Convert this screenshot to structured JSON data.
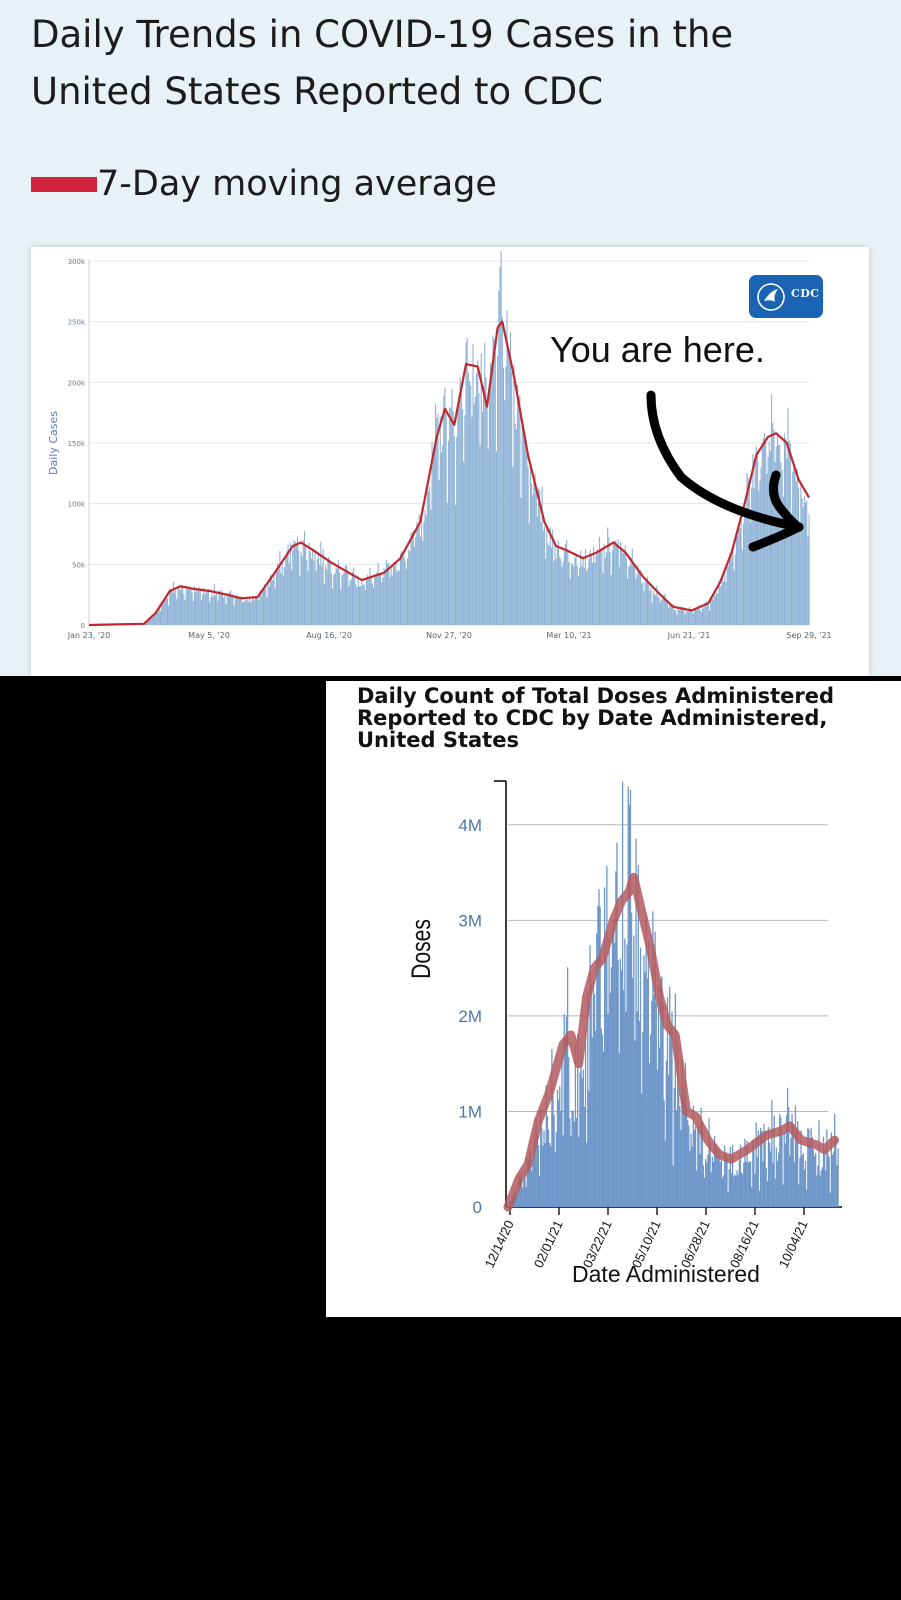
{
  "cases_panel": {
    "title_lines": [
      "Daily Trends in COVID-19 Cases in the",
      "United States Reported to CDC"
    ],
    "legend_label": "7-Day moving average",
    "annotation": "You are here.",
    "logo_text": "CDC",
    "colors": {
      "bars": "#8fb3d6",
      "average": "#c0282d",
      "legend": "#d1223b",
      "logo": "#1a64b3"
    }
  },
  "doses_panel": {
    "title_lines": [
      "Daily Count of Total Doses Administered",
      "Reported to CDC by Date Administered,",
      "United States"
    ],
    "colors": {
      "bars": "#6f97c9",
      "average": "#b45a5e",
      "axis_text": "#4a78ad"
    }
  },
  "chart_data": [
    {
      "type": "bar",
      "title": "Daily Trends in COVID-19 Cases in the United States Reported to CDC",
      "xlabel": "",
      "ylabel": "Daily Cases",
      "ylim": [
        0,
        300000
      ],
      "yticks": [
        "0",
        "50k",
        "100k",
        "150k",
        "200k",
        "250k",
        "300k"
      ],
      "xticks": [
        "Jan 23, '20",
        "May 5, '20",
        "Aug 16, '20",
        "Nov 27, '20",
        "Mar 10, '21",
        "Jun 21, '21",
        "Sep 29, '21"
      ],
      "grid": true,
      "legend_position": "top-left",
      "series": [
        {
          "name": "7-Day moving average",
          "points": [
            [
              "2020-01-23",
              0
            ],
            [
              "2020-03-10",
              1000
            ],
            [
              "2020-03-20",
              10000
            ],
            [
              "2020-04-01",
              28000
            ],
            [
              "2020-04-10",
              32000
            ],
            [
              "2020-04-20",
              30000
            ],
            [
              "2020-05-05",
              28000
            ],
            [
              "2020-05-20",
              25000
            ],
            [
              "2020-06-01",
              22000
            ],
            [
              "2020-06-15",
              23000
            ],
            [
              "2020-07-01",
              45000
            ],
            [
              "2020-07-15",
              65000
            ],
            [
              "2020-07-22",
              68000
            ],
            [
              "2020-08-01",
              62000
            ],
            [
              "2020-08-16",
              52000
            ],
            [
              "2020-09-01",
              43000
            ],
            [
              "2020-09-12",
              37000
            ],
            [
              "2020-10-01",
              43000
            ],
            [
              "2020-10-15",
              55000
            ],
            [
              "2020-11-01",
              85000
            ],
            [
              "2020-11-15",
              155000
            ],
            [
              "2020-11-22",
              178000
            ],
            [
              "2020-11-30",
              165000
            ],
            [
              "2020-12-10",
              215000
            ],
            [
              "2020-12-20",
              213000
            ],
            [
              "2020-12-28",
              180000
            ],
            [
              "2021-01-06",
              245000
            ],
            [
              "2021-01-10",
              250000
            ],
            [
              "2021-01-20",
              205000
            ],
            [
              "2021-02-01",
              140000
            ],
            [
              "2021-02-15",
              85000
            ],
            [
              "2021-02-25",
              65000
            ],
            [
              "2021-03-05",
              62000
            ],
            [
              "2021-03-20",
              55000
            ],
            [
              "2021-04-01",
              60000
            ],
            [
              "2021-04-15",
              68000
            ],
            [
              "2021-04-25",
              60000
            ],
            [
              "2021-05-10",
              40000
            ],
            [
              "2021-05-25",
              25000
            ],
            [
              "2021-06-05",
              15000
            ],
            [
              "2021-06-21",
              12000
            ],
            [
              "2021-07-05",
              18000
            ],
            [
              "2021-07-15",
              35000
            ],
            [
              "2021-07-25",
              60000
            ],
            [
              "2021-08-05",
              100000
            ],
            [
              "2021-08-15",
              140000
            ],
            [
              "2021-08-25",
              155000
            ],
            [
              "2021-09-01",
              158000
            ],
            [
              "2021-09-10",
              150000
            ],
            [
              "2021-09-20",
              120000
            ],
            [
              "2021-09-29",
              105000
            ]
          ]
        },
        {
          "name": "Daily Cases",
          "peak": 295000,
          "peak_date": "2021-01-08"
        }
      ]
    },
    {
      "type": "bar",
      "title": "Daily Count of Total Doses Administered Reported to CDC by Date Administered, United States",
      "xlabel": "Date Administered",
      "ylabel": "Doses",
      "ylim": [
        0,
        4500000
      ],
      "yticks": [
        "0",
        "1M",
        "2M",
        "3M",
        "4M"
      ],
      "xticks": [
        "12/14/20",
        "02/01/21",
        "03/22/21",
        "05/10/21",
        "06/28/21",
        "08/16/21",
        "10/04/21"
      ],
      "grid": true,
      "series": [
        {
          "name": "7-day average",
          "points": [
            [
              "2020-12-14",
              0
            ],
            [
              "2020-12-24",
              300000
            ],
            [
              "2021-01-01",
              450000
            ],
            [
              "2021-01-10",
              900000
            ],
            [
              "2021-01-20",
              1200000
            ],
            [
              "2021-02-01",
              1700000
            ],
            [
              "2021-02-08",
              1800000
            ],
            [
              "2021-02-15",
              1500000
            ],
            [
              "2021-02-22",
              2200000
            ],
            [
              "2021-03-01",
              2500000
            ],
            [
              "2021-03-08",
              2600000
            ],
            [
              "2021-03-18",
              3000000
            ],
            [
              "2021-03-25",
              3200000
            ],
            [
              "2021-04-01",
              3300000
            ],
            [
              "2021-04-05",
              3450000
            ],
            [
              "2021-04-10",
              3200000
            ],
            [
              "2021-04-20",
              2700000
            ],
            [
              "2021-04-28",
              2200000
            ],
            [
              "2021-05-05",
              1900000
            ],
            [
              "2021-05-12",
              1800000
            ],
            [
              "2021-05-22",
              1000000
            ],
            [
              "2021-05-30",
              950000
            ],
            [
              "2021-06-10",
              700000
            ],
            [
              "2021-06-20",
              550000
            ],
            [
              "2021-07-01",
              500000
            ],
            [
              "2021-07-15",
              600000
            ],
            [
              "2021-08-01",
              750000
            ],
            [
              "2021-08-15",
              800000
            ],
            [
              "2021-08-22",
              850000
            ],
            [
              "2021-09-01",
              700000
            ],
            [
              "2021-09-15",
              650000
            ],
            [
              "2021-09-22",
              600000
            ],
            [
              "2021-10-01",
              700000
            ]
          ]
        },
        {
          "name": "Daily doses",
          "peak": 4500000,
          "peak_date": "2021-04-01"
        }
      ]
    }
  ]
}
